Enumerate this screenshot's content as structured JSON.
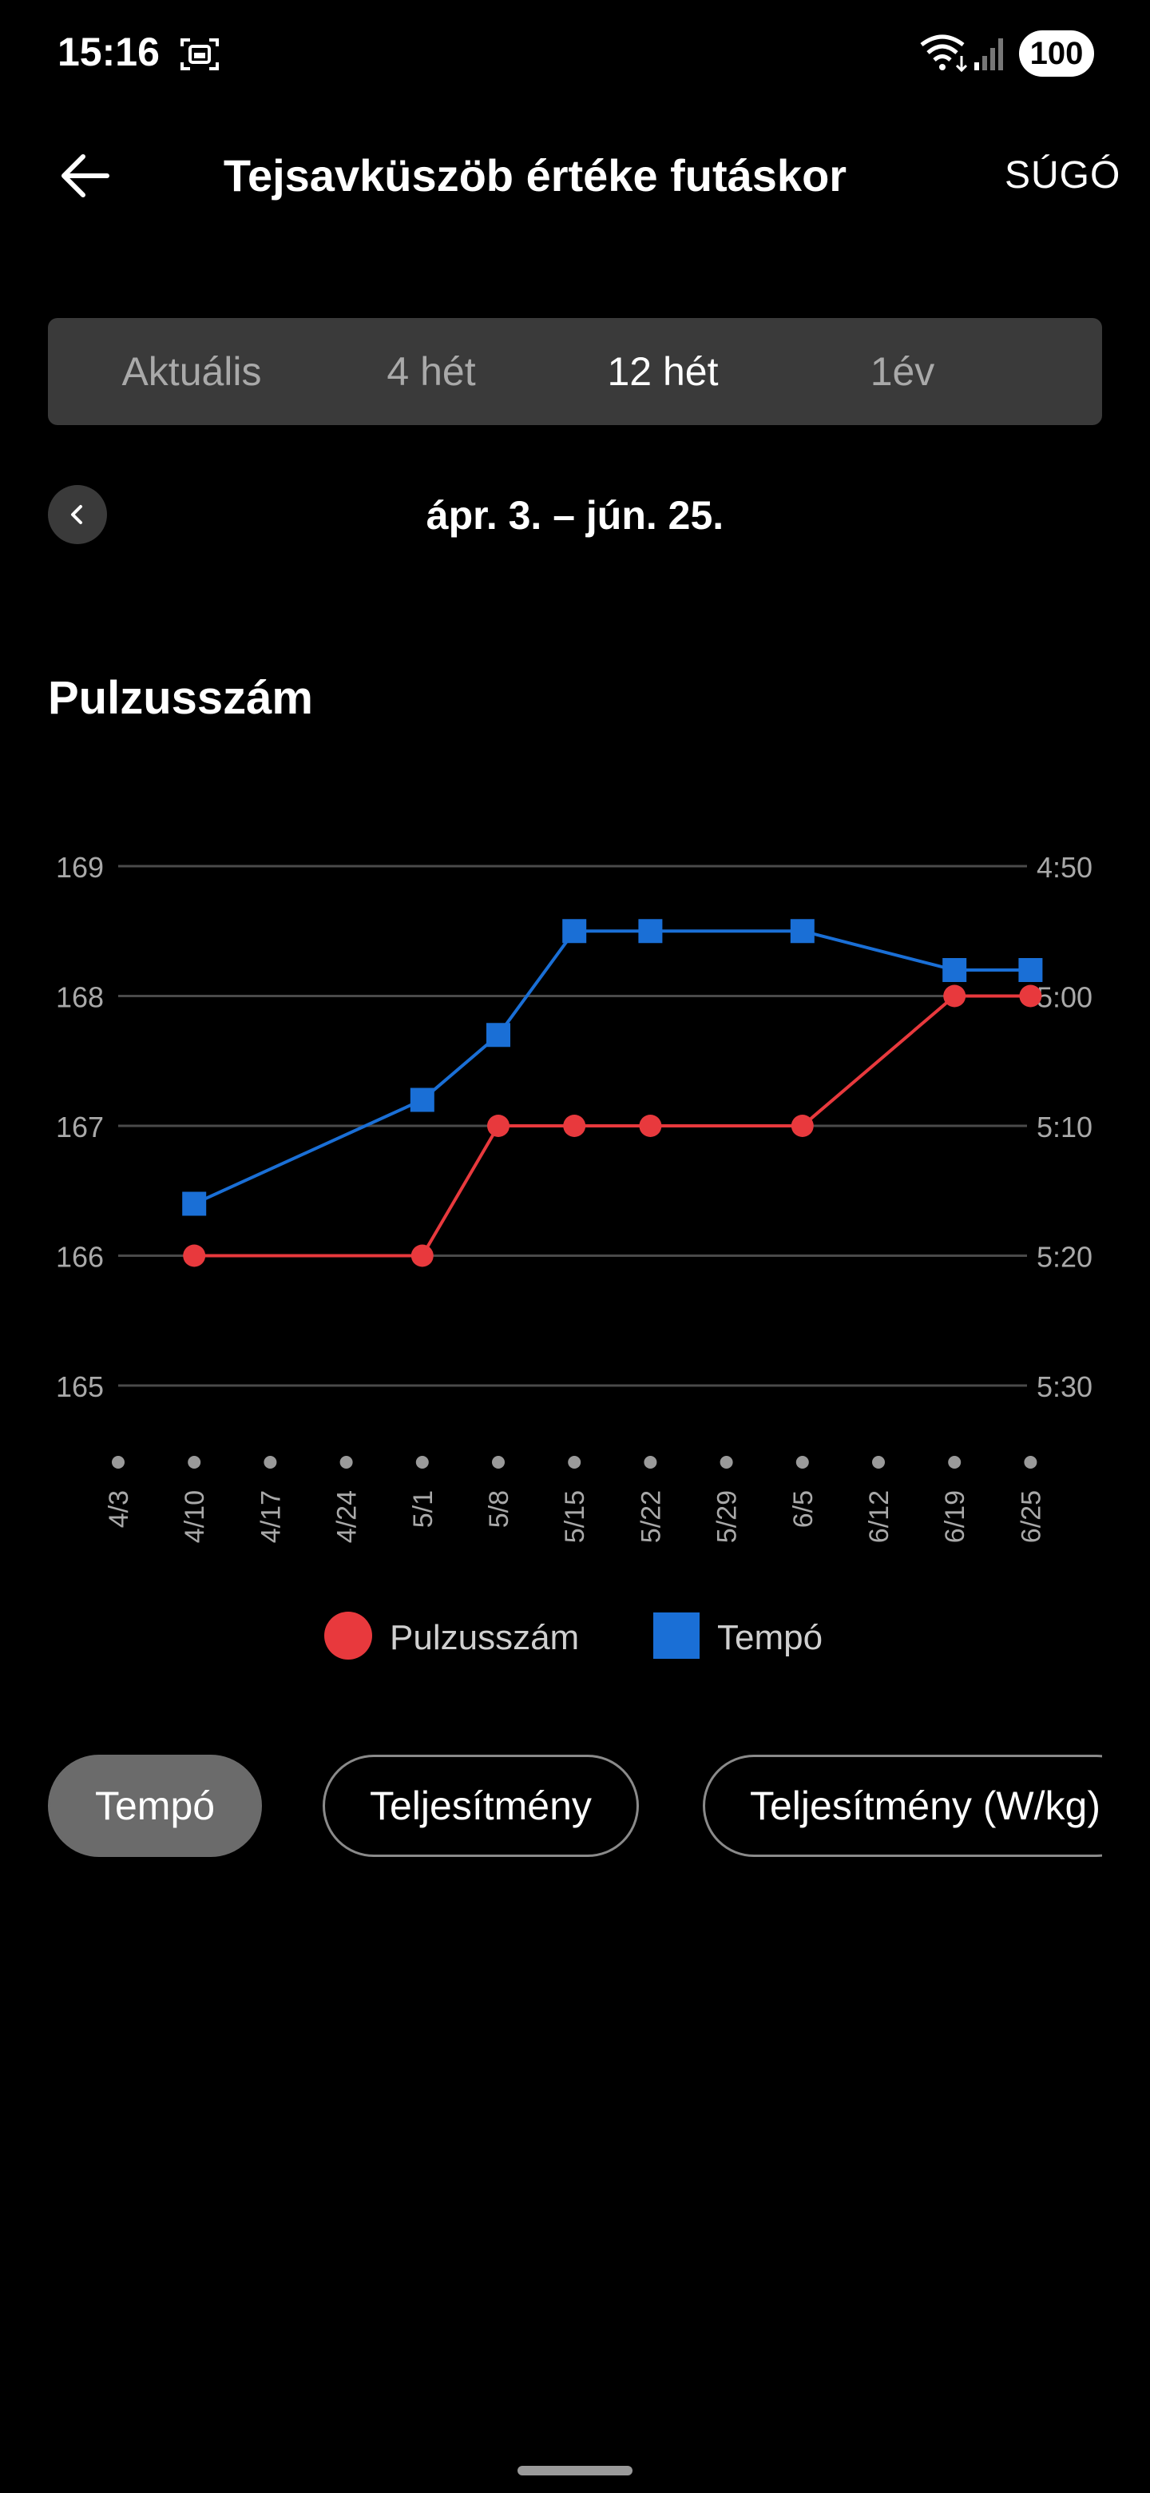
{
  "status_bar": {
    "time": "15:16",
    "battery": "100"
  },
  "header": {
    "title": "Tejsavküszöb értéke futáskor",
    "help": "SÚGÓ"
  },
  "tabs": [
    {
      "label": "Aktuális",
      "active": false
    },
    {
      "label": "4 hét",
      "active": false
    },
    {
      "label": "12 hét",
      "active": true
    },
    {
      "label": "1év",
      "active": false
    }
  ],
  "date_range": "ápr. 3. – jún. 25.",
  "section_title": "Pulzusszám",
  "chart_data": {
    "type": "line",
    "categories": [
      "4/3",
      "4/10",
      "4/17",
      "4/24",
      "5/1",
      "5/8",
      "5/15",
      "5/22",
      "5/29",
      "6/5",
      "6/12",
      "6/19",
      "6/25"
    ],
    "y_left": {
      "ticks": [
        "169",
        "168",
        "167",
        "166",
        "165"
      ],
      "range": [
        165,
        169
      ]
    },
    "y_right": {
      "ticks": [
        "4:50",
        "5:00",
        "5:10",
        "5:20",
        "5:30"
      ],
      "range_seconds_per_km": [
        290,
        330
      ],
      "inverted": true
    },
    "grid": true,
    "series": [
      {
        "name": "Pulzusszám",
        "color": "#e8393d",
        "marker": "circle",
        "axis": "left",
        "points": [
          {
            "x": "4/10",
            "y": 166
          },
          {
            "x": "5/1",
            "y": 166
          },
          {
            "x": "5/8",
            "y": 167
          },
          {
            "x": "5/15",
            "y": 167
          },
          {
            "x": "5/22",
            "y": 167
          },
          {
            "x": "6/5",
            "y": 167
          },
          {
            "x": "6/19",
            "y": 168
          },
          {
            "x": "6/25",
            "y": 168
          }
        ]
      },
      {
        "name": "Tempó",
        "color": "#1a6fd6",
        "marker": "square",
        "axis": "right",
        "points": [
          {
            "x": "4/10",
            "y": "5:16"
          },
          {
            "x": "5/1",
            "y": "5:08"
          },
          {
            "x": "5/8",
            "y": "5:03"
          },
          {
            "x": "5/15",
            "y": "4:55"
          },
          {
            "x": "5/22",
            "y": "4:55"
          },
          {
            "x": "6/5",
            "y": "4:55"
          },
          {
            "x": "6/19",
            "y": "4:58"
          },
          {
            "x": "6/25",
            "y": "4:58"
          }
        ]
      }
    ]
  },
  "legend": [
    "Pulzusszám",
    "Tempó"
  ],
  "chips": [
    {
      "label": "Tempó",
      "active": true
    },
    {
      "label": "Teljesítmény",
      "active": false
    },
    {
      "label": "Teljesítmény (W/kg)",
      "active": false
    }
  ]
}
